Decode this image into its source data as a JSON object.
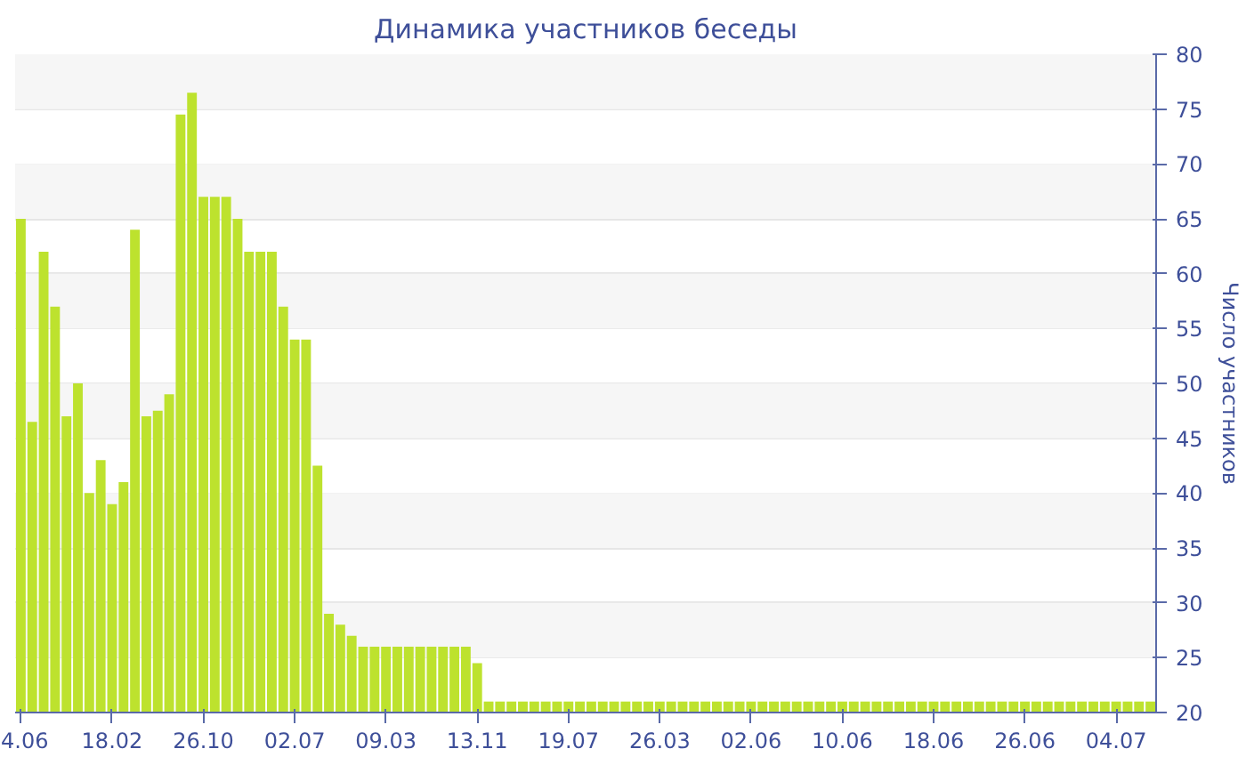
{
  "chart_data": {
    "type": "bar",
    "title": "Динамика участников беседы",
    "ylabel": "Число участников",
    "categories": [
      "4.06",
      null,
      null,
      null,
      null,
      null,
      null,
      null,
      "18.02",
      null,
      null,
      null,
      null,
      null,
      null,
      null,
      "26.10",
      null,
      null,
      null,
      null,
      null,
      null,
      null,
      "02.07",
      null,
      null,
      null,
      null,
      null,
      null,
      null,
      "09.03",
      null,
      null,
      null,
      null,
      null,
      null,
      null,
      "13.11",
      null,
      null,
      null,
      null,
      null,
      null,
      null,
      "19.07",
      null,
      null,
      null,
      null,
      null,
      null,
      null,
      "26.03",
      null,
      null,
      null,
      null,
      null,
      null,
      null,
      "02.06",
      null,
      null,
      null,
      null,
      null,
      null,
      null,
      "10.06",
      null,
      null,
      null,
      null,
      null,
      null,
      null,
      "18.06",
      null,
      null,
      null,
      null,
      null,
      null,
      null,
      "26.06",
      null,
      null,
      null,
      null,
      null,
      null,
      null,
      "04.07",
      null,
      null,
      null
    ],
    "values": [
      65,
      46.5,
      62,
      57,
      47,
      50,
      40,
      43,
      39,
      41,
      64,
      47,
      47.5,
      49,
      74.5,
      76.5,
      67,
      67,
      67,
      65,
      62,
      62,
      62,
      57,
      54,
      54,
      42.5,
      29,
      28,
      27,
      26,
      26,
      26,
      26,
      26,
      26,
      26,
      26,
      26,
      26,
      24.5,
      21,
      21,
      21,
      21,
      21,
      21,
      21,
      21,
      21,
      21,
      21,
      21,
      21,
      21,
      21,
      21,
      21,
      21,
      21,
      21,
      21,
      21,
      21,
      21,
      21,
      21,
      21,
      21,
      21,
      21,
      21,
      21,
      21,
      21,
      21,
      21,
      21,
      21,
      21,
      21,
      21,
      21,
      21,
      21,
      21,
      21,
      21,
      21,
      21,
      21,
      21,
      21,
      21,
      21,
      21,
      21,
      21,
      21,
      21
    ],
    "color": "#bde22e",
    "ylim": [
      20,
      80
    ],
    "yticks": [
      20,
      25,
      30,
      35,
      40,
      45,
      50,
      55,
      60,
      65,
      70,
      75,
      80
    ],
    "grid": "y"
  }
}
